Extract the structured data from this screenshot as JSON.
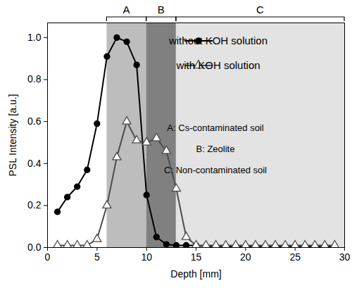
{
  "chart_data": {
    "type": "line",
    "xlabel": "Depth [mm]",
    "ylabel": "PSL Intensity [a.u.]",
    "x": [
      1,
      2,
      3,
      4,
      5,
      6,
      7,
      8,
      9,
      10,
      11,
      12,
      13,
      14,
      15,
      16,
      17,
      18,
      19,
      20,
      21,
      22,
      23,
      24,
      25,
      26,
      27,
      28,
      29
    ],
    "series": [
      {
        "name": "without KOH solution",
        "color": "#000000",
        "marker": "circle",
        "values": [
          0.17,
          0.24,
          0.29,
          0.37,
          0.59,
          0.91,
          1.0,
          0.98,
          0.87,
          0.25,
          0.05,
          0.015,
          0.01,
          0.01,
          0.01,
          0.005,
          0.005,
          0.005,
          0.005,
          0.005,
          0.005,
          0.005,
          0.005,
          0.005,
          0.005,
          0.005,
          0.005,
          0.005,
          0.005
        ]
      },
      {
        "name": "with KOH solution",
        "color": "#4d4d4d",
        "marker": "triangle",
        "values": [
          0.01,
          0.01,
          0.01,
          0.01,
          0.04,
          0.2,
          0.43,
          0.6,
          0.51,
          0.5,
          0.52,
          0.46,
          0.28,
          0.05,
          0.01,
          0.01,
          0.01,
          0.01,
          0.01,
          0.01,
          0.01,
          0.01,
          0.01,
          0.01,
          0.01,
          0.01,
          0.01,
          0.01,
          0.01
        ]
      }
    ],
    "xlim": [
      0,
      30
    ],
    "xticks": [
      0,
      5,
      10,
      15,
      20,
      25,
      30
    ],
    "ylim": [
      0,
      1.07
    ],
    "yticks": [
      {
        "value": 0,
        "label": "0.0"
      },
      0.2,
      0.4,
      0.6,
      0.8,
      {
        "value": 1,
        "label": "1.0"
      }
    ],
    "legend": "upper right",
    "regions": [
      {
        "label": "A",
        "start": 6,
        "end": 10,
        "color": "#bdbdbd"
      },
      {
        "label": "B",
        "start": 10,
        "end": 13,
        "color": "#808080"
      },
      {
        "label": "C",
        "start": 13,
        "end": 30,
        "color": "#e3e3e3"
      }
    ],
    "annotations": [
      "A: Cs-contaminated soil",
      "B: Zeolite",
      "C: Non-contaminated soil"
    ]
  }
}
